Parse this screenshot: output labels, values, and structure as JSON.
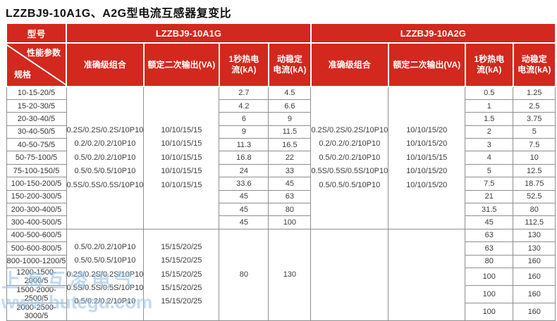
{
  "page_title": "LZZBJ9-10A1G、A2G型电流互感器复变比",
  "colors": {
    "header_red": "#d2281e",
    "body_border_gray": "#8f8f8f",
    "watermark_blue": "#9cc4e6"
  },
  "watermark": {
    "line1": "上海互凌电气",
    "line2": "www.hutegu.com"
  },
  "table": {
    "model_label": "型号",
    "corner_top": "性能参数",
    "corner_bottom": "规格",
    "groups": [
      {
        "label": "LZZBJ9-10A1G"
      },
      {
        "label": "LZZBJ9-10A2G"
      }
    ],
    "column_headers": [
      "准确级组合",
      "额定二次输出(VA)",
      "1秒热电\n流(kA)",
      "动稳定\n电流(kA)"
    ],
    "top_rows": [
      [
        "10-15-20/5",
        "2.7",
        "4.5",
        "0.5",
        "1.25"
      ],
      [
        "15-20-30/5",
        "4.2",
        "6.6",
        "1",
        "2.5"
      ],
      [
        "20-30-40/5",
        "6",
        "9",
        "1.5",
        "3.75"
      ],
      [
        "30-40-50/5",
        "9",
        "11.5",
        "2",
        "5"
      ],
      [
        "40-50-75/5",
        "11.3",
        "16.5",
        "3",
        "7.5"
      ],
      [
        "50-75-100/5",
        "16.8",
        "22",
        "4",
        "10"
      ],
      [
        "75-100-150/5",
        "24",
        "33",
        "5",
        "12.5"
      ],
      [
        "100-150-200/5",
        "33.6",
        "45",
        "7.5",
        "18.75"
      ],
      [
        "150-200-300/5",
        "45",
        "63",
        "21",
        "52.5"
      ],
      [
        "200-300-400/5",
        "45",
        "80",
        "31.5",
        "80"
      ],
      [
        "300-400-500/5",
        "45",
        "100",
        "45",
        "112.5"
      ]
    ],
    "bottom_rows": [
      [
        "400-500-600/5",
        "63",
        "130"
      ],
      [
        "500-600-800/5",
        "63",
        "130"
      ],
      [
        "800-1000-1200/5",
        "80",
        "160"
      ],
      [
        "1200-1500-2000/5",
        "100",
        "160"
      ],
      [
        "1500-2000-2500/5",
        "100",
        "160"
      ],
      [
        "2000-2500-3000/5",
        "100",
        "160"
      ]
    ],
    "merged": {
      "a1g_top_accuracy": "0.2S/0.2S/0.2S/10P10\n0.2/0.2/0.2/10P10\n0.5/0.2/0.2/10P10\n0.5/0.5/0.5/10P10\n0.5S/0.5S/0.5S/10P10",
      "a1g_top_va": "10/10/15/15\n10/10/15/15\n10/10/15/15\n10/10/15/15\n10/10/15/15",
      "a2g_top_accuracy": "0.2S/0.2S/0.2S/10P10\n0.2/0.2/0.2/10P10\n0.5/0.2/0.2/10P10\n0.5S/0.5S/0.5S/10P10\n0.5/0.5/0.5/10P10",
      "a2g_top_va": "10/10/15/20\n10/10/15/20\n10/10/15/15\n10/10/15/20\n10/10/15/20",
      "a1g_bottom_accuracy": "0.5/0.2/0.2/10P10\n0.5/0.5/0.5/10P10\n0.2S/0.2S/0.2S/10P10\n0.5S/0.5S/0.5S/10P10\n0.5/0.2/0.2/10P10",
      "a1g_bottom_va": "15/15/20/25\n15/15/20/25\n15/15/20/25\n15/15/20/25\n15/15/20/25",
      "a1g_bottom_heat": "80",
      "a1g_bottom_dyn": "130",
      "a2g_bottom_accuracy": "",
      "a2g_bottom_va": ""
    }
  }
}
